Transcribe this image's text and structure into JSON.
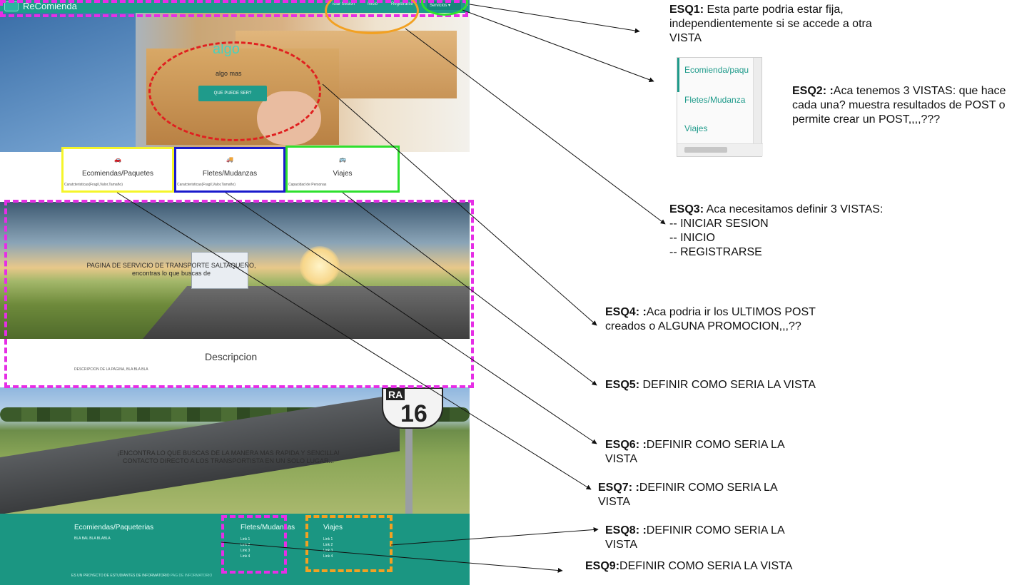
{
  "navbar": {
    "brand": "ReComienda",
    "links": [
      "iciar Sesion",
      "Inicio",
      "Registrarse"
    ],
    "services_dropdown": "Servicios ▾"
  },
  "hero": {
    "title": "algo",
    "subtitle": "algo mas",
    "button": "QUE PUEDE SER?"
  },
  "features": [
    {
      "icon": "car-icon",
      "glyph": "🚗",
      "title": "Ecomiendas/Paquetes",
      "desc": "Caratcteristicas(Fragil,Valor,Tamaño)"
    },
    {
      "icon": "truck-icon",
      "glyph": "🚚",
      "title": "Fletes/Mudanzas",
      "desc": "Caratcteristicas(Fragil,Valor,Tamaño)"
    },
    {
      "icon": "bus-icon",
      "glyph": "🚌",
      "title": "Viajes",
      "desc": "Capacidad de Personas"
    }
  ],
  "banner1": {
    "line1": "PAGINA DE SERVICIO DE TRANSPORTE SALTAQUEÑO,",
    "line2": "encontras lo que buscas de"
  },
  "description": {
    "title": "Descripcion",
    "text": "DESCRIPCION DE LA PAGINA, BLA BLA BLA"
  },
  "banner2": {
    "sign_ra": "RA",
    "sign_number": "16",
    "line1": "¡ENCONTRA LO QUE BUSCAS DE LA MANERA MAS RAPIDA Y SENCILLA!",
    "line2": "CONTACTO DIRECTO A LOS TRANSPORTISTA EN UN SOLO LUGAR..."
  },
  "footer": {
    "col1": {
      "title": "Ecomiendas/Paqueterias",
      "text": "BLA BAL BLA BLABLA"
    },
    "col2": {
      "title": "Fletes/Mudanzas",
      "links": [
        "Link 1",
        "Link 2",
        "Link 3",
        "Link 4"
      ]
    },
    "col3": {
      "title": "Viajes",
      "links": [
        "Link 1",
        "Link 2",
        "Link 3",
        "Link 4"
      ]
    },
    "copy": "ES UN PROYECTO DE ESTUDIANTES DE INFORMATORIO",
    "copy_link": "PAG DE INFORMATORIO"
  },
  "services_list": {
    "items": [
      "Ecomienda/paqu",
      "Fletes/Mudanza",
      "Viajes"
    ]
  },
  "notes": {
    "esq1_label": "ESQ1:",
    "esq1_text": " Esta parte podria estar fija, independientemente si se accede a otra VISTA",
    "esq2_label": "ESQ2: :",
    "esq2_text": "Aca tenemos 3 VISTAS: que hace cada una? muestra resultados de POST o permite crear un POST,,,,???",
    "esq3_label": "ESQ3:",
    "esq3_text": " Aca necesitamos definir 3 VISTAS:",
    "esq3_items": [
      "-- INICIAR SESION",
      "-- INICIO",
      "-- REGISTRARSE"
    ],
    "esq4_label": "ESQ4: :",
    "esq4_text": "Aca podria ir los ULTIMOS POST creados o ALGUNA PROMOCION,,,??",
    "esq5_label": "ESQ5:",
    "esq5_text": " DEFINIR COMO SERIA LA VISTA",
    "esq6_label": "ESQ6: :",
    "esq6_text": "DEFINIR COMO SERIA LA VISTA",
    "esq7_label": "ESQ7: :",
    "esq7_text": "DEFINIR COMO SERIA LA VISTA",
    "esq8_label": "ESQ8: :",
    "esq8_text": "DEFINIR COMO SERIA LA VISTA",
    "esq9_label": "ESQ9:",
    "esq9_text": "DEFINIR COMO SERIA LA VISTA"
  },
  "colors": {
    "teal": "#1f9b8b",
    "magenta": "#e62ee6",
    "orange": "#f2a122",
    "green": "#2ee02e",
    "yellow": "#f5f52a",
    "blue": "#1a1acc",
    "red": "#e02020"
  }
}
